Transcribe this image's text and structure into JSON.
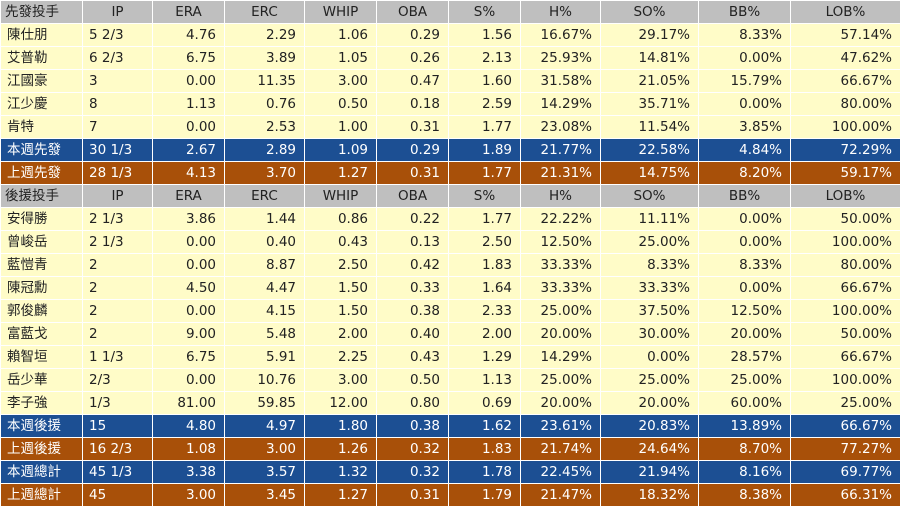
{
  "columns": [
    "IP",
    "ERA",
    "ERC",
    "WHIP",
    "OBA",
    "S%",
    "H%",
    "SO%",
    "BB%",
    "LOB%"
  ],
  "starters": {
    "header": "先發投手",
    "rows": [
      [
        "陳仕朋",
        "5 2/3",
        "4.76",
        "2.29",
        "1.06",
        "0.29",
        "1.56",
        "16.67%",
        "29.17%",
        "8.33%",
        "57.14%"
      ],
      [
        "艾普勒",
        "6 2/3",
        "6.75",
        "3.89",
        "1.05",
        "0.26",
        "2.13",
        "25.93%",
        "14.81%",
        "0.00%",
        "47.62%"
      ],
      [
        "江國豪",
        "3",
        "0.00",
        "11.35",
        "3.00",
        "0.47",
        "1.60",
        "31.58%",
        "21.05%",
        "15.79%",
        "66.67%"
      ],
      [
        "江少慶",
        "8",
        "1.13",
        "0.76",
        "0.50",
        "0.18",
        "2.59",
        "14.29%",
        "35.71%",
        "0.00%",
        "80.00%"
      ],
      [
        "肯特",
        "7",
        "0.00",
        "2.53",
        "1.00",
        "0.31",
        "1.77",
        "23.08%",
        "11.54%",
        "3.85%",
        "100.00%"
      ]
    ],
    "this_week": [
      "本週先發",
      "30 1/3",
      "2.67",
      "2.89",
      "1.09",
      "0.29",
      "1.89",
      "21.77%",
      "22.58%",
      "4.84%",
      "72.29%"
    ],
    "last_week": [
      "上週先發",
      "28 1/3",
      "4.13",
      "3.70",
      "1.27",
      "0.31",
      "1.77",
      "21.31%",
      "14.75%",
      "8.20%",
      "59.17%"
    ]
  },
  "relievers": {
    "header": "後援投手",
    "rows": [
      [
        "安得勝",
        "2 1/3",
        "3.86",
        "1.44",
        "0.86",
        "0.22",
        "1.77",
        "22.22%",
        "11.11%",
        "0.00%",
        "50.00%"
      ],
      [
        "曾峻岳",
        "2 1/3",
        "0.00",
        "0.40",
        "0.43",
        "0.13",
        "2.50",
        "12.50%",
        "25.00%",
        "0.00%",
        "100.00%"
      ],
      [
        "藍愷青",
        "2",
        "0.00",
        "8.87",
        "2.50",
        "0.42",
        "1.83",
        "33.33%",
        "8.33%",
        "8.33%",
        "80.00%"
      ],
      [
        "陳冠勳",
        "2",
        "4.50",
        "4.47",
        "1.50",
        "0.33",
        "1.64",
        "33.33%",
        "33.33%",
        "0.00%",
        "66.67%"
      ],
      [
        "郭俊麟",
        "2",
        "0.00",
        "4.15",
        "1.50",
        "0.38",
        "2.33",
        "25.00%",
        "37.50%",
        "12.50%",
        "100.00%"
      ],
      [
        "富藍戈",
        "2",
        "9.00",
        "5.48",
        "2.00",
        "0.40",
        "2.00",
        "20.00%",
        "30.00%",
        "20.00%",
        "50.00%"
      ],
      [
        "賴智垣",
        "1 1/3",
        "6.75",
        "5.91",
        "2.25",
        "0.43",
        "1.29",
        "14.29%",
        "0.00%",
        "28.57%",
        "66.67%"
      ],
      [
        "岳少華",
        "2/3",
        "0.00",
        "10.76",
        "3.00",
        "0.50",
        "1.13",
        "25.00%",
        "25.00%",
        "25.00%",
        "100.00%"
      ],
      [
        "李子強",
        "1/3",
        "81.00",
        "59.85",
        "12.00",
        "0.80",
        "0.69",
        "20.00%",
        "20.00%",
        "60.00%",
        "25.00%"
      ]
    ],
    "this_week": [
      "本週後援",
      "15",
      "4.80",
      "4.97",
      "1.80",
      "0.38",
      "1.62",
      "23.61%",
      "20.83%",
      "13.89%",
      "66.67%"
    ],
    "last_week": [
      "上週後援",
      "16 2/3",
      "1.08",
      "3.00",
      "1.26",
      "0.32",
      "1.83",
      "21.74%",
      "24.64%",
      "8.70%",
      "77.27%"
    ]
  },
  "totals": {
    "this_week": [
      "本週總計",
      "45 1/3",
      "3.38",
      "3.57",
      "1.32",
      "0.32",
      "1.78",
      "22.45%",
      "21.94%",
      "8.16%",
      "69.77%"
    ],
    "last_week": [
      "上週總計",
      "45",
      "3.00",
      "3.45",
      "1.27",
      "0.31",
      "1.79",
      "21.47%",
      "18.32%",
      "8.38%",
      "66.31%"
    ]
  }
}
